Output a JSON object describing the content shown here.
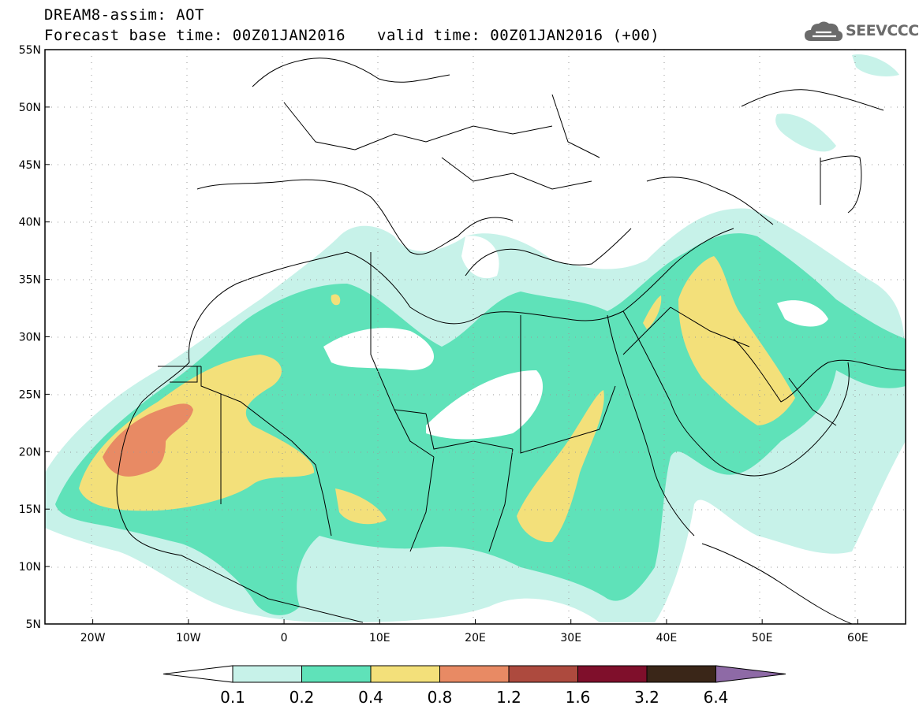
{
  "header": {
    "title": "DREAM8-assim: AOT",
    "base_time": "Forecast base time: 00Z01JAN2016",
    "valid_time": "valid time: 00Z01JAN2016 (+00)"
  },
  "logo": {
    "text": "SEEVCCC",
    "icon": "cloud-icon",
    "color": "#6b6b6b"
  },
  "map": {
    "lon_range": [
      -25,
      65
    ],
    "lat_range": [
      5,
      55
    ],
    "lat_labels": [
      "55N",
      "50N",
      "45N",
      "40N",
      "35N",
      "30N",
      "25N",
      "20N",
      "15N",
      "10N",
      "5N"
    ],
    "lon_labels": [
      "20W",
      "10W",
      "0",
      "10E",
      "20E",
      "30E",
      "40E",
      "50E",
      "60E"
    ],
    "grid": "dotted"
  },
  "legend": {
    "labels": [
      "0.1",
      "0.2",
      "0.4",
      "0.8",
      "1.2",
      "1.6",
      "3.2",
      "6.4"
    ],
    "colors": [
      "#ffffff",
      "#c7f2e9",
      "#5fe2b9",
      "#f3e07a",
      "#e88a64",
      "#ad4a3e",
      "#7f0f2b",
      "#3a2618",
      "#8e6aa6"
    ]
  }
}
